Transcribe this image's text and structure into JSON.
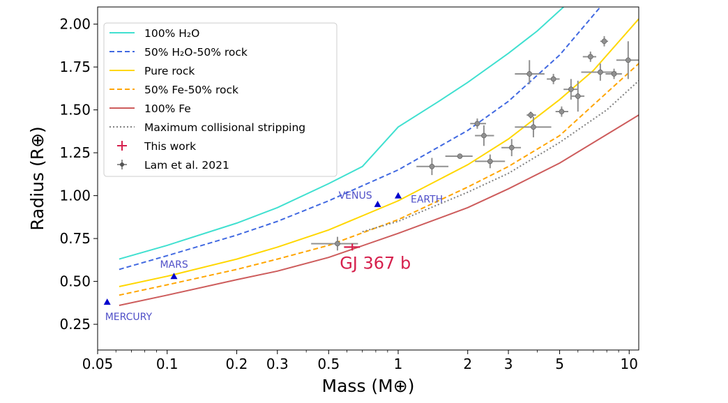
{
  "chart_data": {
    "type": "line",
    "xlabel": "Mass (M⊕)",
    "ylabel": "Radius (R⊕)",
    "xscale": "log",
    "xlim": [
      0.05,
      11
    ],
    "ylim": [
      0.1,
      2.1
    ],
    "x_ticks": [
      0.05,
      0.1,
      0.2,
      0.3,
      0.5,
      1,
      2,
      3,
      5,
      10
    ],
    "x_tick_labels": [
      "0.05",
      "0.1",
      "0.2",
      "0.3",
      "0.5",
      "1",
      "2",
      "3",
      "5",
      "10"
    ],
    "y_ticks": [
      0.25,
      0.5,
      0.75,
      1.0,
      1.25,
      1.5,
      1.75,
      2.0
    ],
    "y_tick_labels": [
      "0.25",
      "0.50",
      "0.75",
      "1.00",
      "1.25",
      "1.50",
      "1.75",
      "2.00"
    ],
    "legend_position": "top-left",
    "series": [
      {
        "name": "100% H₂O",
        "color": "#40e0d0",
        "style": "solid",
        "x": [
          0.062,
          0.1,
          0.2,
          0.3,
          0.5,
          0.7,
          1,
          1.5,
          2,
          3,
          4,
          5.2
        ],
        "y": [
          0.63,
          0.71,
          0.84,
          0.93,
          1.07,
          1.17,
          1.4,
          1.55,
          1.66,
          1.83,
          1.96,
          2.1
        ]
      },
      {
        "name": "50% H₂O-50% rock",
        "color": "#4169e1",
        "style": "dashed",
        "x": [
          0.062,
          0.1,
          0.2,
          0.3,
          0.5,
          1,
          2,
          3,
          5,
          7.5
        ],
        "y": [
          0.57,
          0.65,
          0.77,
          0.85,
          0.97,
          1.15,
          1.38,
          1.55,
          1.82,
          2.1
        ]
      },
      {
        "name": "Pure rock",
        "color": "#ffd700",
        "style": "solid",
        "x": [
          0.062,
          0.1,
          0.2,
          0.3,
          0.5,
          1,
          2,
          3,
          5,
          7,
          11
        ],
        "y": [
          0.47,
          0.53,
          0.63,
          0.7,
          0.8,
          0.97,
          1.18,
          1.33,
          1.56,
          1.73,
          2.03
        ]
      },
      {
        "name": "50% Fe-50% rock",
        "color": "#ffa500",
        "style": "dashed",
        "x": [
          0.062,
          0.1,
          0.2,
          0.3,
          0.5,
          1,
          2,
          3,
          5,
          11
        ],
        "y": [
          0.42,
          0.48,
          0.57,
          0.63,
          0.71,
          0.86,
          1.05,
          1.17,
          1.35,
          1.77
        ]
      },
      {
        "name": "100% Fe",
        "color": "#cd5c5c",
        "style": "solid",
        "x": [
          0.062,
          0.1,
          0.2,
          0.3,
          0.5,
          1,
          2,
          3,
          5,
          11
        ],
        "y": [
          0.36,
          0.42,
          0.51,
          0.56,
          0.64,
          0.78,
          0.93,
          1.04,
          1.19,
          1.47
        ]
      },
      {
        "name": "Maximum collisional stripping",
        "color": "#808080",
        "style": "dotted",
        "x": [
          0.7,
          1,
          2,
          3,
          5,
          8,
          11
        ],
        "y": [
          0.79,
          0.85,
          1.02,
          1.13,
          1.31,
          1.5,
          1.67
        ]
      }
    ],
    "this_work": {
      "name": "This work",
      "label": "GJ 367 b",
      "color": "#d6204d",
      "x": 0.633,
      "x_err": 0.05,
      "y": 0.7,
      "y_err": 0.02
    },
    "lam_2021": {
      "name": "Lam et al. 2021",
      "color": "#909090",
      "points": [
        {
          "x": 0.546,
          "y": 0.72,
          "xlo": 0.42,
          "xhi": 0.67,
          "ylo": 0.68,
          "yhi": 0.76
        },
        {
          "x": 1.4,
          "y": 1.17,
          "xlo": 1.2,
          "xhi": 1.65,
          "ylo": 1.12,
          "yhi": 1.22
        },
        {
          "x": 1.85,
          "y": 1.23,
          "xlo": 1.6,
          "xhi": 2.1,
          "ylo": 1.22,
          "yhi": 1.24
        },
        {
          "x": 2.2,
          "y": 1.42,
          "xlo": 2.05,
          "xhi": 2.4,
          "ylo": 1.39,
          "yhi": 1.45
        },
        {
          "x": 2.35,
          "y": 1.35,
          "xlo": 2.15,
          "xhi": 2.6,
          "ylo": 1.29,
          "yhi": 1.41
        },
        {
          "x": 2.5,
          "y": 1.2,
          "xlo": 2.15,
          "xhi": 2.9,
          "ylo": 1.16,
          "yhi": 1.24
        },
        {
          "x": 3.1,
          "y": 1.28,
          "xlo": 2.8,
          "xhi": 3.4,
          "ylo": 1.23,
          "yhi": 1.33
        },
        {
          "x": 3.7,
          "y": 1.71,
          "xlo": 3.2,
          "xhi": 4.3,
          "ylo": 1.65,
          "yhi": 1.79
        },
        {
          "x": 3.75,
          "y": 1.47,
          "xlo": 3.6,
          "xhi": 3.95,
          "ylo": 1.45,
          "yhi": 1.49
        },
        {
          "x": 3.85,
          "y": 1.4,
          "xlo": 3.2,
          "xhi": 4.6,
          "ylo": 1.34,
          "yhi": 1.46
        },
        {
          "x": 4.7,
          "y": 1.68,
          "xlo": 4.4,
          "xhi": 5.0,
          "ylo": 1.65,
          "yhi": 1.71
        },
        {
          "x": 5.1,
          "y": 1.49,
          "xlo": 4.8,
          "xhi": 5.45,
          "ylo": 1.46,
          "yhi": 1.52
        },
        {
          "x": 5.6,
          "y": 1.62,
          "xlo": 5.2,
          "xhi": 6.0,
          "ylo": 1.56,
          "yhi": 1.68
        },
        {
          "x": 6.0,
          "y": 1.58,
          "xlo": 5.6,
          "xhi": 6.4,
          "ylo": 1.49,
          "yhi": 1.67
        },
        {
          "x": 6.8,
          "y": 1.81,
          "xlo": 6.3,
          "xhi": 7.2,
          "ylo": 1.78,
          "yhi": 1.84
        },
        {
          "x": 7.5,
          "y": 1.72,
          "xlo": 6.2,
          "xhi": 8.8,
          "ylo": 1.67,
          "yhi": 1.77
        },
        {
          "x": 7.8,
          "y": 1.9,
          "xlo": 7.5,
          "xhi": 8.1,
          "ylo": 1.87,
          "yhi": 1.93
        },
        {
          "x": 8.6,
          "y": 1.71,
          "xlo": 7.9,
          "xhi": 9.3,
          "ylo": 1.68,
          "yhi": 1.74
        },
        {
          "x": 9.9,
          "y": 1.79,
          "xlo": 8.8,
          "xhi": 11.0,
          "ylo": 1.68,
          "yhi": 1.9
        }
      ]
    },
    "solar_system": {
      "color": "#0000cd",
      "label_color": "#5050c8",
      "points": [
        {
          "name": "MERCURY",
          "x": 0.055,
          "y": 0.38,
          "label_side": "below"
        },
        {
          "name": "MARS",
          "x": 0.107,
          "y": 0.53,
          "label_side": "above"
        },
        {
          "name": "VENUS",
          "x": 0.815,
          "y": 0.95,
          "label_side": "above-left"
        },
        {
          "name": "EARTH",
          "x": 1.0,
          "y": 1.0,
          "label_side": "right"
        }
      ]
    }
  }
}
